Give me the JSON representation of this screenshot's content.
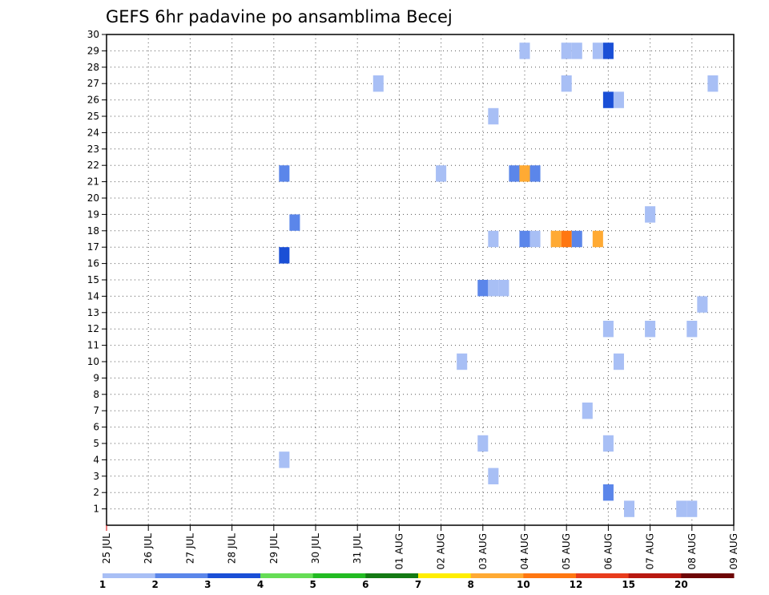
{
  "chart_data": {
    "type": "heatmap",
    "title": "GEFS 6hr padavine po ansamblima Becej",
    "x_labels": [
      "25 JUL",
      "26 JUL",
      "27 JUL",
      "28 JUL",
      "29 JUL",
      "30 JUL",
      "31 JUL",
      "01 AUG",
      "02 AUG",
      "03 AUG",
      "04 AUG",
      "05 AUG",
      "06 AUG",
      "07 AUG",
      "08 AUG",
      "09 AUG"
    ],
    "x_range": [
      0,
      15
    ],
    "y_labels": [
      "1",
      "2",
      "3",
      "4",
      "5",
      "6",
      "7",
      "8",
      "9",
      "10",
      "11",
      "12",
      "13",
      "14",
      "15",
      "16",
      "17",
      "18",
      "19",
      "20",
      "21",
      "22",
      "23",
      "24",
      "25",
      "26",
      "27",
      "28",
      "29",
      "30"
    ],
    "y_range": [
      0,
      30
    ],
    "grid": true,
    "cell_width_days": 0.25,
    "colorbar": {
      "levels": [
        "1",
        "2",
        "3",
        "4",
        "5",
        "6",
        "7",
        "8",
        "10",
        "12",
        "15",
        "20"
      ],
      "colors": [
        "#a8bff5",
        "#5b86ea",
        "#1a4fd6",
        "#66dd55",
        "#22bb22",
        "#147a14",
        "#ffee00",
        "#ffaa33",
        "#ff7711",
        "#e83c1c",
        "#b81810",
        "#6e0606"
      ]
    },
    "cells": [
      {
        "x": 4.25,
        "y": 16.5,
        "cls": 2
      },
      {
        "x": 4.25,
        "y": 21.5,
        "cls": 1
      },
      {
        "x": 4.5,
        "y": 18.5,
        "cls": 1
      },
      {
        "x": 4.25,
        "y": 4,
        "cls": 0
      },
      {
        "x": 6.5,
        "y": 27,
        "cls": 0
      },
      {
        "x": 8.0,
        "y": 21.5,
        "cls": 0
      },
      {
        "x": 8.5,
        "y": 10,
        "cls": 0
      },
      {
        "x": 9.0,
        "y": 14.5,
        "cls": 1
      },
      {
        "x": 9.25,
        "y": 14.5,
        "cls": 0
      },
      {
        "x": 9.5,
        "y": 14.5,
        "cls": 0
      },
      {
        "x": 9.0,
        "y": 5,
        "cls": 0
      },
      {
        "x": 9.25,
        "y": 3,
        "cls": 0
      },
      {
        "x": 9.25,
        "y": 17.5,
        "cls": 0
      },
      {
        "x": 9.25,
        "y": 25,
        "cls": 0
      },
      {
        "x": 9.75,
        "y": 21.5,
        "cls": 1
      },
      {
        "x": 10.0,
        "y": 21.5,
        "cls": 7
      },
      {
        "x": 10.25,
        "y": 21.5,
        "cls": 1
      },
      {
        "x": 10.0,
        "y": 17.5,
        "cls": 1
      },
      {
        "x": 10.25,
        "y": 17.5,
        "cls": 0
      },
      {
        "x": 10.0,
        "y": 29,
        "cls": 0
      },
      {
        "x": 10.75,
        "y": 17.5,
        "cls": 7
      },
      {
        "x": 11.0,
        "y": 17.5,
        "cls": 8
      },
      {
        "x": 11.25,
        "y": 17.5,
        "cls": 1
      },
      {
        "x": 11.0,
        "y": 27,
        "cls": 0
      },
      {
        "x": 11.0,
        "y": 29,
        "cls": 0
      },
      {
        "x": 11.25,
        "y": 29,
        "cls": 0
      },
      {
        "x": 11.5,
        "y": 7,
        "cls": 0
      },
      {
        "x": 11.75,
        "y": 17.5,
        "cls": 7
      },
      {
        "x": 11.75,
        "y": 29,
        "cls": 0
      },
      {
        "x": 12.0,
        "y": 29,
        "cls": 2
      },
      {
        "x": 12.0,
        "y": 26,
        "cls": 2
      },
      {
        "x": 12.25,
        "y": 26,
        "cls": 0
      },
      {
        "x": 12.0,
        "y": 12,
        "cls": 0
      },
      {
        "x": 12.25,
        "y": 10,
        "cls": 0
      },
      {
        "x": 12.0,
        "y": 5,
        "cls": 0
      },
      {
        "x": 12.0,
        "y": 2,
        "cls": 1
      },
      {
        "x": 12.5,
        "y": 1,
        "cls": 0
      },
      {
        "x": 13.0,
        "y": 19,
        "cls": 0
      },
      {
        "x": 13.0,
        "y": 12,
        "cls": 0
      },
      {
        "x": 13.75,
        "y": 1,
        "cls": 0
      },
      {
        "x": 14.0,
        "y": 1,
        "cls": 0
      },
      {
        "x": 14.0,
        "y": 12,
        "cls": 0
      },
      {
        "x": 14.25,
        "y": 13.5,
        "cls": 0
      },
      {
        "x": 14.5,
        "y": 27,
        "cls": 0
      }
    ]
  }
}
